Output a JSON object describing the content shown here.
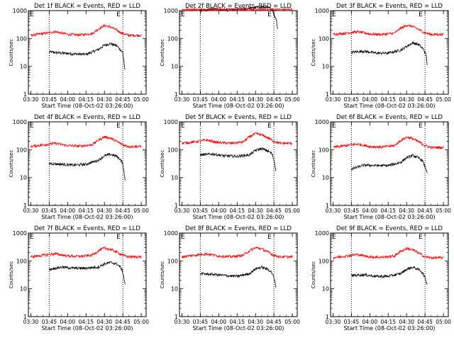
{
  "colors": {
    "events": "#000000",
    "lld": "#ff0000",
    "axis": "#000000",
    "background": "#ffffff"
  },
  "shared": {
    "xlabel": "Start Time (08-Oct-02 03:26:00)",
    "ylabel": "Counts/sec",
    "x_ticks": [
      "03:30",
      "03:45",
      "04:00",
      "04:15",
      "04:30",
      "04:45",
      "05:00"
    ],
    "y_ticks": [
      "1",
      "10",
      "100",
      "1000"
    ],
    "marker": "E"
  },
  "chart_data": [
    {
      "type": "line",
      "title": "Det 1f BLACK = Events, RED = LLD",
      "yscale": "log",
      "ylim": [
        1,
        1000
      ],
      "xlim": [
        "03:28",
        "05:04"
      ],
      "x_unit": "minutes since 03:30",
      "dotted_lines_x": [
        "03:45",
        "04:45"
      ],
      "series": [
        {
          "name": "BLACK = Events",
          "x": [
            15,
            25,
            35,
            45,
            55,
            60,
            65,
            70,
            73,
            74,
            75,
            77
          ],
          "y": [
            33,
            30,
            28,
            27,
            40,
            58,
            65,
            55,
            40,
            35,
            30,
            6
          ]
        },
        {
          "name": "RED = LLD",
          "x": [
            0,
            10,
            20,
            30,
            40,
            50,
            55,
            60,
            65,
            70,
            75,
            80,
            90
          ],
          "y": [
            130,
            150,
            175,
            140,
            135,
            150,
            220,
            290,
            260,
            200,
            150,
            130,
            130
          ]
        }
      ]
    },
    {
      "type": "line",
      "title": "Det 2f BLACK = Events, RED = LLD",
      "yscale": "log",
      "ylim": [
        1,
        1000
      ],
      "xlim": [
        "03:28",
        "05:04"
      ],
      "x_unit": "minutes since 03:30",
      "dotted_lines_x": [
        "03:45",
        "04:45"
      ],
      "series": [
        {
          "name": "BLACK = Events",
          "x": [
            15,
            25,
            35,
            45,
            55,
            60,
            65,
            70,
            74,
            75,
            77,
            78
          ],
          "y": [
            1000,
            1150,
            1050,
            1100,
            1200,
            1300,
            1350,
            1300,
            1100,
            700,
            500,
            220
          ]
        },
        {
          "name": "RED = LLD",
          "x": [
            0,
            10,
            20,
            30,
            40,
            50,
            60,
            70,
            80,
            90
          ],
          "y": [
            1100,
            1100,
            1100,
            1100,
            1100,
            1100,
            1100,
            1100,
            1100,
            1100
          ]
        }
      ]
    },
    {
      "type": "line",
      "title": "Det 3f BLACK = Events, RED = LLD",
      "yscale": "log",
      "ylim": [
        1,
        1000
      ],
      "xlim": [
        "03:28",
        "05:04"
      ],
      "x_unit": "minutes since 03:30",
      "dotted_lines_x": [
        "03:45",
        "04:45"
      ],
      "series": [
        {
          "name": "BLACK = Events",
          "x": [
            15,
            25,
            35,
            45,
            55,
            60,
            65,
            70,
            74,
            75,
            76,
            77
          ],
          "y": [
            32,
            35,
            30,
            30,
            38,
            52,
            70,
            60,
            40,
            30,
            25,
            10
          ]
        },
        {
          "name": "RED = LLD",
          "x": [
            0,
            10,
            20,
            30,
            40,
            50,
            55,
            60,
            65,
            70,
            75,
            80,
            90
          ],
          "y": [
            140,
            155,
            175,
            145,
            140,
            155,
            230,
            300,
            270,
            210,
            160,
            140,
            140
          ]
        }
      ]
    },
    {
      "type": "line",
      "title": "Det 4f BLACK = Events, RED = LLD",
      "yscale": "log",
      "ylim": [
        1,
        1000
      ],
      "xlim": [
        "03:28",
        "05:04"
      ],
      "x_unit": "minutes since 03:30",
      "dotted_lines_x": [
        "03:45",
        "04:45"
      ],
      "series": [
        {
          "name": "BLACK = Events",
          "x": [
            15,
            25,
            35,
            45,
            55,
            60,
            65,
            70,
            73,
            74,
            75,
            77
          ],
          "y": [
            32,
            30,
            28,
            30,
            42,
            60,
            68,
            58,
            45,
            38,
            30,
            7
          ]
        },
        {
          "name": "RED = LLD",
          "x": [
            0,
            10,
            20,
            30,
            40,
            50,
            55,
            60,
            65,
            70,
            75,
            80,
            90
          ],
          "y": [
            130,
            150,
            170,
            140,
            135,
            150,
            220,
            290,
            260,
            200,
            150,
            130,
            130
          ]
        }
      ]
    },
    {
      "type": "line",
      "title": "Det 5f BLACK = Events, RED = LLD",
      "yscale": "log",
      "ylim": [
        1,
        1000
      ],
      "xlim": [
        "03:28",
        "05:04"
      ],
      "x_unit": "minutes since 03:30",
      "dotted_lines_x": [
        "03:45",
        "04:45"
      ],
      "series": [
        {
          "name": "BLACK = Events",
          "x": [
            15,
            25,
            35,
            45,
            55,
            60,
            65,
            70,
            73,
            74,
            75,
            77
          ],
          "y": [
            65,
            70,
            60,
            58,
            65,
            95,
            110,
            90,
            75,
            60,
            45,
            15
          ]
        },
        {
          "name": "RED = LLD",
          "x": [
            0,
            10,
            20,
            30,
            40,
            50,
            55,
            60,
            65,
            70,
            75,
            80,
            90
          ],
          "y": [
            170,
            190,
            220,
            180,
            170,
            190,
            290,
            380,
            340,
            270,
            200,
            170,
            170
          ]
        }
      ]
    },
    {
      "type": "line",
      "title": "Det 6f BLACK = Events, RED = LLD",
      "yscale": "log",
      "ylim": [
        1,
        1000
      ],
      "xlim": [
        "03:28",
        "05:04"
      ],
      "x_unit": "minutes since 03:30",
      "dotted_lines_x": [
        "03:45",
        "04:45"
      ],
      "series": [
        {
          "name": "BLACK = Events",
          "x": [
            15,
            25,
            35,
            45,
            55,
            60,
            65,
            70,
            73,
            74,
            75,
            77
          ],
          "y": [
            20,
            28,
            27,
            27,
            35,
            52,
            62,
            50,
            40,
            30,
            25,
            15
          ]
        },
        {
          "name": "RED = LLD",
          "x": [
            0,
            10,
            20,
            30,
            40,
            50,
            55,
            60,
            65,
            70,
            75,
            80,
            90
          ],
          "y": [
            120,
            140,
            160,
            130,
            125,
            140,
            210,
            280,
            250,
            190,
            140,
            120,
            120
          ]
        }
      ]
    },
    {
      "type": "line",
      "title": "Det 7f BLACK = Events, RED = LLD",
      "yscale": "log",
      "ylim": [
        1,
        1000
      ],
      "xlim": [
        "03:28",
        "05:04"
      ],
      "x_unit": "minutes since 03:30",
      "dotted_lines_x": [
        "03:45",
        "04:45"
      ],
      "series": [
        {
          "name": "BLACK = Events",
          "x": [
            15,
            25,
            35,
            45,
            55,
            60,
            65,
            70,
            73,
            74,
            75,
            77
          ],
          "y": [
            50,
            60,
            55,
            55,
            60,
            78,
            88,
            78,
            60,
            50,
            40,
            13
          ]
        },
        {
          "name": "RED = LLD",
          "x": [
            0,
            10,
            20,
            30,
            40,
            50,
            55,
            60,
            65,
            70,
            75,
            80,
            90
          ],
          "y": [
            140,
            160,
            180,
            150,
            145,
            160,
            230,
            290,
            260,
            210,
            160,
            140,
            140
          ]
        }
      ]
    },
    {
      "type": "line",
      "title": "Det 8f BLACK = Events, RED = LLD",
      "yscale": "log",
      "ylim": [
        1,
        1000
      ],
      "xlim": [
        "03:28",
        "05:04"
      ],
      "x_unit": "minutes since 03:30",
      "dotted_lines_x": [
        "03:45",
        "04:45"
      ],
      "series": [
        {
          "name": "BLACK = Events",
          "x": [
            15,
            25,
            35,
            45,
            55,
            60,
            65,
            70,
            73,
            74,
            75,
            77
          ],
          "y": [
            35,
            33,
            30,
            28,
            35,
            52,
            60,
            50,
            40,
            32,
            25,
            10
          ]
        },
        {
          "name": "RED = LLD",
          "x": [
            0,
            10,
            20,
            30,
            40,
            50,
            55,
            60,
            65,
            70,
            75,
            80,
            90
          ],
          "y": [
            140,
            160,
            180,
            150,
            140,
            160,
            230,
            300,
            270,
            210,
            160,
            140,
            140
          ]
        }
      ]
    },
    {
      "type": "line",
      "title": "Det 9f BLACK = Events, RED = LLD",
      "yscale": "log",
      "ylim": [
        1,
        1000
      ],
      "xlim": [
        "03:28",
        "05:04"
      ],
      "x_unit": "minutes since 03:30",
      "dotted_lines_x": [
        "03:45",
        "04:45"
      ],
      "series": [
        {
          "name": "BLACK = Events",
          "x": [
            15,
            25,
            35,
            45,
            55,
            60,
            65,
            70,
            73,
            74,
            75,
            77
          ],
          "y": [
            30,
            32,
            28,
            28,
            35,
            50,
            60,
            48,
            38,
            30,
            25,
            13
          ]
        },
        {
          "name": "RED = LLD",
          "x": [
            0,
            10,
            20,
            30,
            40,
            50,
            55,
            60,
            65,
            70,
            75,
            80,
            90
          ],
          "y": [
            130,
            150,
            170,
            140,
            135,
            150,
            220,
            280,
            250,
            190,
            140,
            130,
            130
          ]
        }
      ]
    }
  ]
}
